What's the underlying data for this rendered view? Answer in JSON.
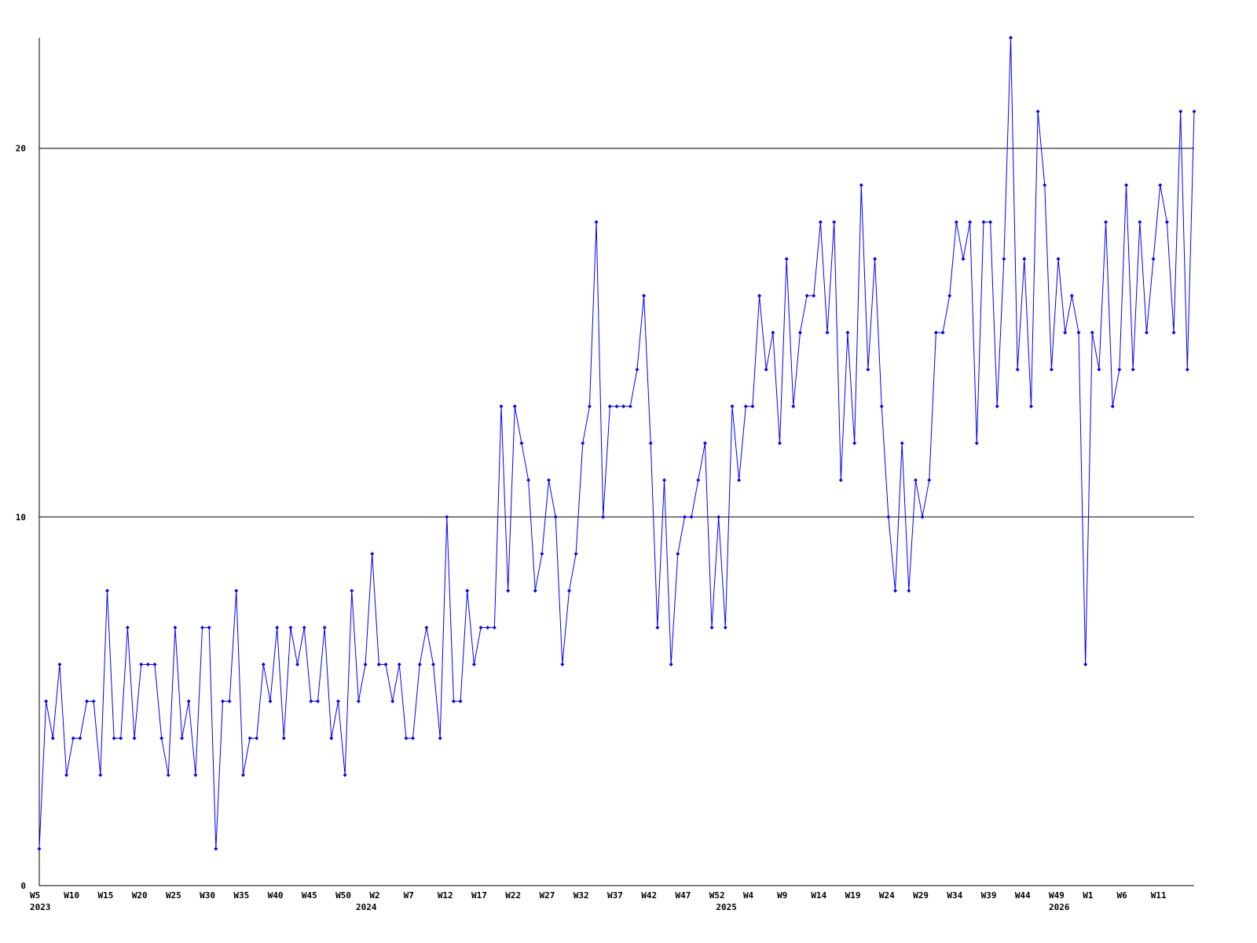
{
  "chart_data": {
    "type": "line",
    "categories": [
      "W5",
      null,
      null,
      null,
      null,
      "W10",
      null,
      null,
      null,
      null,
      "W15",
      null,
      null,
      null,
      null,
      "W20",
      null,
      null,
      null,
      null,
      "W25",
      null,
      null,
      null,
      null,
      "W30",
      null,
      null,
      null,
      null,
      "W35",
      null,
      null,
      null,
      null,
      "W40",
      null,
      null,
      null,
      null,
      "W45",
      null,
      null,
      null,
      null,
      "W50",
      null,
      null,
      null,
      null,
      "W2",
      null,
      null,
      null,
      null,
      "W7",
      null,
      null,
      null,
      null,
      "W12",
      null,
      null,
      null,
      null,
      "W17",
      null,
      null,
      null,
      null,
      "W22",
      null,
      null,
      null,
      null,
      "W27",
      null,
      null,
      null,
      null,
      "W32",
      null,
      null,
      null,
      null,
      "W37",
      null,
      null,
      null,
      null,
      "W42",
      null,
      null,
      null,
      null,
      "W47",
      null,
      null,
      null,
      null,
      "W52",
      null,
      null,
      null,
      null,
      "W4",
      null,
      null,
      null,
      null,
      "W9",
      null,
      null,
      null,
      null,
      "W14",
      null,
      null,
      null,
      null,
      "W19",
      null,
      null,
      null,
      null,
      "W24",
      null,
      null,
      null,
      null,
      "W29",
      null,
      null,
      null,
      null,
      "W34",
      null,
      null,
      null,
      null,
      "W39",
      null,
      null,
      null,
      null,
      "W44",
      null,
      null,
      null,
      null,
      "W49",
      null,
      null,
      null,
      null,
      "W1",
      null,
      null,
      null,
      null,
      "W6",
      null,
      null,
      null,
      null,
      "W11",
      null,
      null,
      null,
      null,
      null
    ],
    "year_labels": [
      "2023",
      null,
      null,
      null,
      null,
      null,
      null,
      null,
      null,
      null,
      null,
      null,
      null,
      null,
      null,
      null,
      null,
      null,
      null,
      null,
      null,
      null,
      null,
      null,
      null,
      null,
      null,
      null,
      null,
      null,
      null,
      null,
      null,
      null,
      null,
      null,
      null,
      null,
      null,
      null,
      null,
      null,
      null,
      null,
      null,
      null,
      null,
      null,
      "2024",
      null,
      null,
      null,
      null,
      null,
      null,
      null,
      null,
      null,
      null,
      null,
      null,
      null,
      null,
      null,
      null,
      null,
      null,
      null,
      null,
      null,
      null,
      null,
      null,
      null,
      null,
      null,
      null,
      null,
      null,
      null,
      null,
      null,
      null,
      null,
      null,
      null,
      null,
      null,
      null,
      null,
      null,
      null,
      null,
      null,
      null,
      null,
      null,
      null,
      null,
      null,
      null,
      "2025",
      null,
      null,
      null,
      null,
      null,
      null,
      null,
      null,
      null,
      null,
      null,
      null,
      null,
      null,
      null,
      null,
      null,
      null,
      null,
      null,
      null,
      null,
      null,
      null,
      null,
      null,
      null,
      null,
      null,
      null,
      null,
      null,
      null,
      null,
      null,
      null,
      null,
      null,
      null,
      null,
      null,
      null,
      null,
      null,
      null,
      null,
      null,
      null,
      "2026",
      null,
      null,
      null,
      null,
      null,
      null,
      null,
      null,
      null,
      null,
      null,
      null,
      null,
      null,
      null,
      null
    ],
    "series": [
      {
        "color": "#0000ff",
        "values": [
          1,
          5,
          4,
          6,
          3,
          4,
          4,
          5,
          5,
          3,
          8,
          4,
          4,
          7,
          4,
          6,
          6,
          6,
          4,
          3,
          7,
          4,
          5,
          3,
          7,
          7,
          1,
          5,
          5,
          8,
          3,
          4,
          4,
          6,
          5,
          7,
          4,
          7,
          6,
          7,
          5,
          5,
          7,
          4,
          5,
          3,
          8,
          5,
          6,
          9,
          6,
          6,
          5,
          6,
          4,
          4,
          6,
          7,
          6,
          4,
          10,
          5,
          5,
          8,
          6,
          7,
          7,
          7,
          13,
          8,
          13,
          12,
          11,
          8,
          9,
          11,
          10,
          6,
          8,
          9,
          12,
          13,
          18,
          10,
          13,
          13,
          13,
          13,
          14,
          16,
          12,
          7,
          11,
          6,
          9,
          10,
          10,
          11,
          12,
          7,
          10,
          7,
          13,
          11,
          13,
          13,
          16,
          14,
          15,
          12,
          17,
          13,
          15,
          16,
          16,
          18,
          15,
          18,
          11,
          15,
          12,
          19,
          14,
          17,
          13,
          10,
          8,
          12,
          8,
          11,
          10,
          11,
          15,
          15,
          16,
          18,
          17,
          18,
          12,
          18,
          18,
          13,
          17,
          23,
          14,
          17,
          13,
          21,
          19,
          14,
          17,
          15,
          16,
          15,
          6,
          15,
          14,
          18,
          13,
          14,
          19,
          14,
          18,
          15,
          17,
          19,
          18,
          15,
          21,
          14,
          21
        ]
      }
    ],
    "ylim": [
      0,
      23
    ],
    "yticks": [
      0,
      10,
      20
    ],
    "grid": true
  }
}
